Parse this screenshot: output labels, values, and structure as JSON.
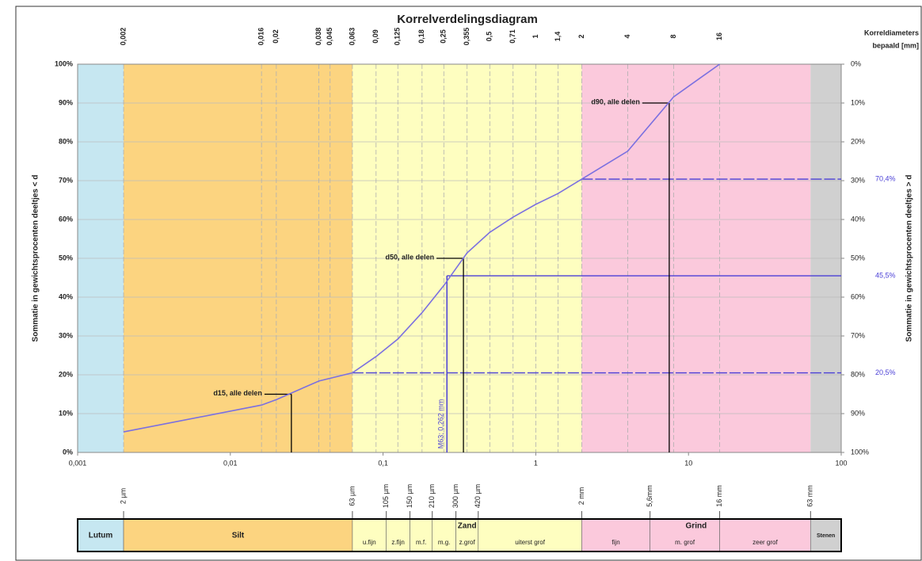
{
  "chart_data": {
    "type": "line",
    "title": "Korrelverdelingsdiagram",
    "y_label": "Sommatie in gewichtsprocenten deeltjes < d",
    "y2_label": "Sommatie in gewichtsprocenten deeltjes > d",
    "right_header": [
      "Korreldiameters",
      "bepaald [mm]"
    ],
    "xscale": "log",
    "xlim": [
      0.001,
      100
    ],
    "xticks": [
      {
        "value": 0.001,
        "label": "0,001"
      },
      {
        "value": 0.01,
        "label": "0,01"
      },
      {
        "value": 0.1,
        "label": "0,1"
      },
      1,
      10,
      100
    ],
    "x2ticks": [
      {
        "value": 0.002,
        "label": "0,002"
      },
      {
        "value": 0.016,
        "label": "0,016"
      },
      {
        "value": 0.02,
        "label": "0,02"
      },
      {
        "value": 0.038,
        "label": "0,038"
      },
      {
        "value": 0.045,
        "label": "0,045"
      },
      {
        "value": 0.063,
        "label": "0,063"
      },
      {
        "value": 0.09,
        "label": "0,09"
      },
      {
        "value": 0.125,
        "label": "0,125"
      },
      {
        "value": 0.18,
        "label": "0,18"
      },
      {
        "value": 0.25,
        "label": "0,25"
      },
      {
        "value": 0.355,
        "label": "0,355"
      },
      {
        "value": 0.5,
        "label": "0,5"
      },
      {
        "value": 0.71,
        "label": "0,71"
      },
      1,
      {
        "value": 1.4,
        "label": "1,4"
      },
      2,
      4,
      8,
      16
    ],
    "ylim": [
      0,
      100
    ],
    "yticks": [
      {
        "value": 0,
        "label": "0%"
      },
      {
        "value": 10,
        "label": "10%"
      },
      {
        "value": 20,
        "label": "20%"
      },
      {
        "value": 30,
        "label": "30%"
      },
      {
        "value": 40,
        "label": "40%"
      },
      {
        "value": 50,
        "label": "50%"
      },
      {
        "value": 60,
        "label": "60%"
      },
      {
        "value": 70,
        "label": "70%"
      },
      {
        "value": 80,
        "label": "80%"
      },
      {
        "value": 90,
        "label": "90%"
      },
      {
        "value": 100,
        "label": "100%"
      }
    ],
    "y2lim": [
      100,
      0
    ],
    "y2ticks": [
      {
        "value": 0,
        "label": "0%"
      },
      {
        "value": 10,
        "label": "10%"
      },
      {
        "value": 20,
        "label": "20%"
      },
      {
        "value": 30,
        "label": "30%"
      },
      {
        "value": 40,
        "label": "40%"
      },
      {
        "value": 50,
        "label": "50%"
      },
      {
        "value": 60,
        "label": "60%"
      },
      {
        "value": 70,
        "label": "70%"
      },
      {
        "value": 80,
        "label": "80%"
      },
      {
        "value": 90,
        "label": "90%"
      },
      {
        "value": 100,
        "label": "100%"
      }
    ],
    "grid": true,
    "color": "#7b70e0",
    "x": [
      0.002,
      0.016,
      0.02,
      0.038,
      0.063,
      0.09,
      0.125,
      0.18,
      0.25,
      0.355,
      0.5,
      0.71,
      1,
      1.4,
      2,
      4,
      8,
      16
    ],
    "values": [
      5.3,
      12.2,
      13.6,
      18.4,
      20.5,
      24.7,
      29.2,
      36,
      43,
      51.4,
      56.7,
      60.6,
      63.9,
      66.7,
      70.4,
      77.6,
      91.6,
      100
    ],
    "annotations": [
      {
        "text": "d15, alle delen",
        "x": 0.0251,
        "y": 15
      },
      {
        "text": "d50, alle delen",
        "x": 0.336,
        "y": 50
      },
      {
        "text": "d90, alle delen",
        "x": 7.48,
        "y": 90
      }
    ],
    "reference_lines": [
      {
        "y": 70.4,
        "label": "70,4%",
        "from": 2,
        "style": "dashed"
      },
      {
        "y": 45.5,
        "label": "45,5%",
        "from": 0.262,
        "style": "solid"
      },
      {
        "y": 20.5,
        "label": "20,5%",
        "from": 0.063,
        "style": "dashed"
      }
    ],
    "reference_color": "#4a3fd6",
    "marker": {
      "text": "M63; 0,262 mm",
      "x": 0.262,
      "y": 45.5
    },
    "bands": [
      {
        "name": "Lutum",
        "from": 0.001,
        "to": 0.002,
        "color": "#c6e7f1"
      },
      {
        "name": "Silt",
        "from": 0.002,
        "to": 0.063,
        "color": "#fcd480"
      },
      {
        "name": "Zand",
        "from": 0.063,
        "to": 2,
        "color": "#fefec0",
        "subclasses": [
          {
            "name": "u.fijn",
            "from": 0.063,
            "to": 0.105
          },
          {
            "name": "z.fijn",
            "from": 0.105,
            "to": 0.15
          },
          {
            "name": "m.f.",
            "from": 0.15,
            "to": 0.21
          },
          {
            "name": "m.g.",
            "from": 0.21,
            "to": 0.3
          },
          {
            "name": "z.grof",
            "from": 0.3,
            "to": 0.42
          },
          {
            "name": "uiterst grof",
            "from": 0.42,
            "to": 2
          }
        ]
      },
      {
        "name": "Grind",
        "from": 2,
        "to": 63,
        "color": "#fbc9dc",
        "subclasses": [
          {
            "name": "fijn",
            "from": 2,
            "to": 5.6
          },
          {
            "name": "m. grof",
            "from": 5.6,
            "to": 16
          },
          {
            "name": "zeer grof",
            "from": 16,
            "to": 63
          }
        ]
      },
      {
        "name": "Stenen",
        "from": 63,
        "to": 100,
        "color": "#d0d0d0"
      }
    ],
    "size_marks": [
      {
        "value": 0.002,
        "label": "2 µm"
      },
      {
        "value": 0.063,
        "label": "63 µm"
      },
      {
        "value": 0.105,
        "label": "105 µm"
      },
      {
        "value": 0.15,
        "label": "150 µm"
      },
      {
        "value": 0.21,
        "label": "210 µm"
      },
      {
        "value": 0.3,
        "label": "300 µm"
      },
      {
        "value": 0.42,
        "label": "420 µm"
      },
      {
        "value": 2,
        "label": "2 mm"
      },
      {
        "value": 5.6,
        "label": "5,6mm"
      },
      {
        "value": 16,
        "label": "16 mm"
      },
      {
        "value": 63,
        "label": "63 mm"
      }
    ]
  }
}
